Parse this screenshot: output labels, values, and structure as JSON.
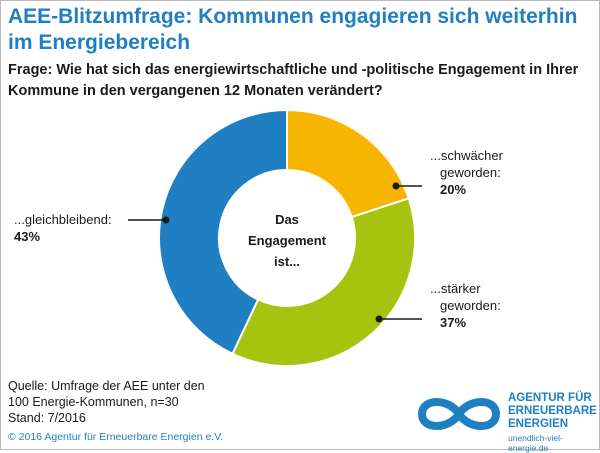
{
  "header": {
    "title": "AEE-Blitzumfrage: Kommunen engagieren sich weiterhin im Energiebereich",
    "question": "Frage: Wie hat sich das energiewirtschaftliche und -politische Engagement in Ihrer Kommune in den vergangenen 12 Monaten verändert?"
  },
  "chart_data": {
    "type": "pie",
    "donut": true,
    "center_label": [
      "Das",
      "Engagement",
      "ist..."
    ],
    "categories": [
      "...schwächer geworden",
      "...stärker geworden",
      "...gleichbleibend"
    ],
    "values": [
      20,
      37,
      43
    ],
    "value_labels": [
      "20%",
      "37%",
      "43%"
    ],
    "colors": [
      "#f8b500",
      "#a6c40f",
      "#1f7fc2"
    ],
    "annotations": [
      {
        "lines": [
          "...schwächer",
          "geworden:"
        ],
        "value": "20%"
      },
      {
        "lines": [
          "...stärker",
          "geworden:"
        ],
        "value": "37%"
      },
      {
        "lines": [
          "...gleichbleibend:"
        ],
        "value": "43%"
      }
    ]
  },
  "footer": {
    "source_lines": [
      "Quelle: Umfrage der AEE unter den",
      "100 Energie-Kommunen, n=30",
      "Stand: 7/2016"
    ],
    "copyright": "© 2016 Agentur für Erneuerbare Energien e.V.",
    "logo_lines": [
      "AGENTUR FÜR",
      "ERNEUERBARE",
      "ENERGIEN"
    ],
    "logo_url": "unendlich-viel-energie.de",
    "logo_color": "#1f7fc2"
  }
}
